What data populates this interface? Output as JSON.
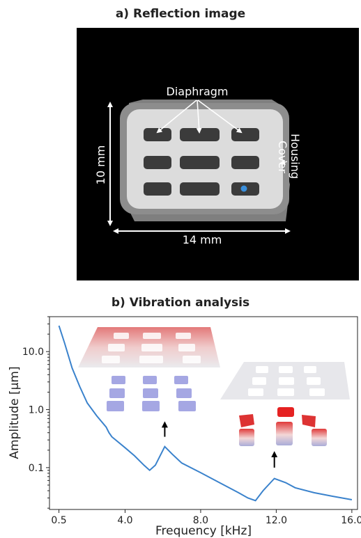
{
  "panel_a": {
    "title": "a) Reflection image",
    "labels": {
      "diaphragm": "Diaphragm",
      "housing": "Housing",
      "cover": "Cover",
      "height": "10 mm",
      "width": "14 mm"
    },
    "colors": {
      "background": "#000000",
      "cover": "#d9d9d9",
      "housing": "#8a8a8a",
      "diaphragm": "#3a3a3a",
      "marker": "#3a8fdc"
    }
  },
  "panel_b": {
    "title": "b) Vibration analysis"
  },
  "chart_data": {
    "type": "line",
    "xlabel": "Frequency [kHz]",
    "ylabel": "Amplitude [μm]",
    "x_ticks": [
      "0.5",
      "4.0",
      "8.0",
      "12.0",
      "16.0"
    ],
    "y_ticks": [
      "0.1",
      "1.0",
      "10.0"
    ],
    "xlim": [
      0,
      16.3
    ],
    "ylim": [
      0.019,
      40
    ],
    "y_scale": "log",
    "grid": false,
    "series": [
      {
        "color": "#3a82cc",
        "x": [
          0.5,
          0.8,
          1.2,
          1.6,
          2.0,
          2.5,
          3.0,
          3.15,
          3.3,
          4.0,
          4.5,
          5.0,
          5.3,
          5.6,
          6.1,
          6.5,
          7.0,
          8.0,
          9.0,
          10.0,
          10.5,
          10.9,
          11.3,
          11.9,
          12.5,
          13.0,
          14.0,
          15.0,
          16.0
        ],
        "y": [
          28,
          14,
          5.2,
          2.5,
          1.3,
          0.78,
          0.5,
          0.4,
          0.34,
          0.22,
          0.16,
          0.11,
          0.09,
          0.11,
          0.23,
          0.17,
          0.12,
          0.082,
          0.055,
          0.037,
          0.03,
          0.027,
          0.04,
          0.065,
          0.055,
          0.045,
          0.037,
          0.032,
          0.028
        ]
      }
    ],
    "annotations": [
      {
        "x": 6.1,
        "y_from": 0.34,
        "y_to": 0.62,
        "color": "#000000"
      },
      {
        "x": 11.9,
        "y_from": 0.1,
        "y_to": 0.19,
        "color": "#000000"
      }
    ]
  }
}
